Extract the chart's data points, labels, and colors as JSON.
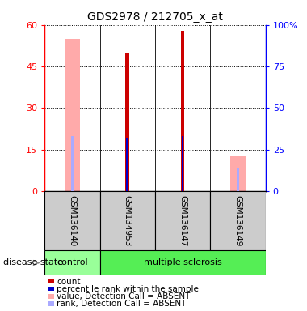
{
  "title": "GDS2978 / 212705_x_at",
  "samples": [
    "GSM136140",
    "GSM134953",
    "GSM136147",
    "GSM136149"
  ],
  "ylim_left": [
    0,
    60
  ],
  "ylim_right": [
    0,
    100
  ],
  "yticks_left": [
    0,
    15,
    30,
    45,
    60
  ],
  "yticks_right": [
    0,
    25,
    50,
    75,
    100
  ],
  "ytick_labels_right": [
    "0",
    "25",
    "50",
    "75",
    "100%"
  ],
  "bars": {
    "GSM136140": {
      "value_absent": 55,
      "rank_absent": 33,
      "count": null,
      "percentile": null
    },
    "GSM134953": {
      "value_absent": null,
      "rank_absent": null,
      "count": 50,
      "percentile": 32
    },
    "GSM136147": {
      "value_absent": null,
      "rank_absent": null,
      "count": 58,
      "percentile": 33
    },
    "GSM136149": {
      "value_absent": 13,
      "rank_absent": 14,
      "count": null,
      "percentile": null
    }
  },
  "colors": {
    "count": "#cc0000",
    "percentile": "#0000cc",
    "value_absent": "#ffaaaa",
    "rank_absent": "#aaaaff",
    "control_bg": "#99ff99",
    "ms_bg": "#55ee55",
    "sample_bg": "#cccccc",
    "white": "#ffffff"
  },
  "legend": [
    {
      "label": "count",
      "color": "#cc0000"
    },
    {
      "label": "percentile rank within the sample",
      "color": "#0000cc"
    },
    {
      "label": "value, Detection Call = ABSENT",
      "color": "#ffaaaa"
    },
    {
      "label": "rank, Detection Call = ABSENT",
      "color": "#aaaaff"
    }
  ],
  "wide_bar_width": 0.28,
  "narrow_bar_width": 0.07,
  "tiny_bar_width": 0.04
}
